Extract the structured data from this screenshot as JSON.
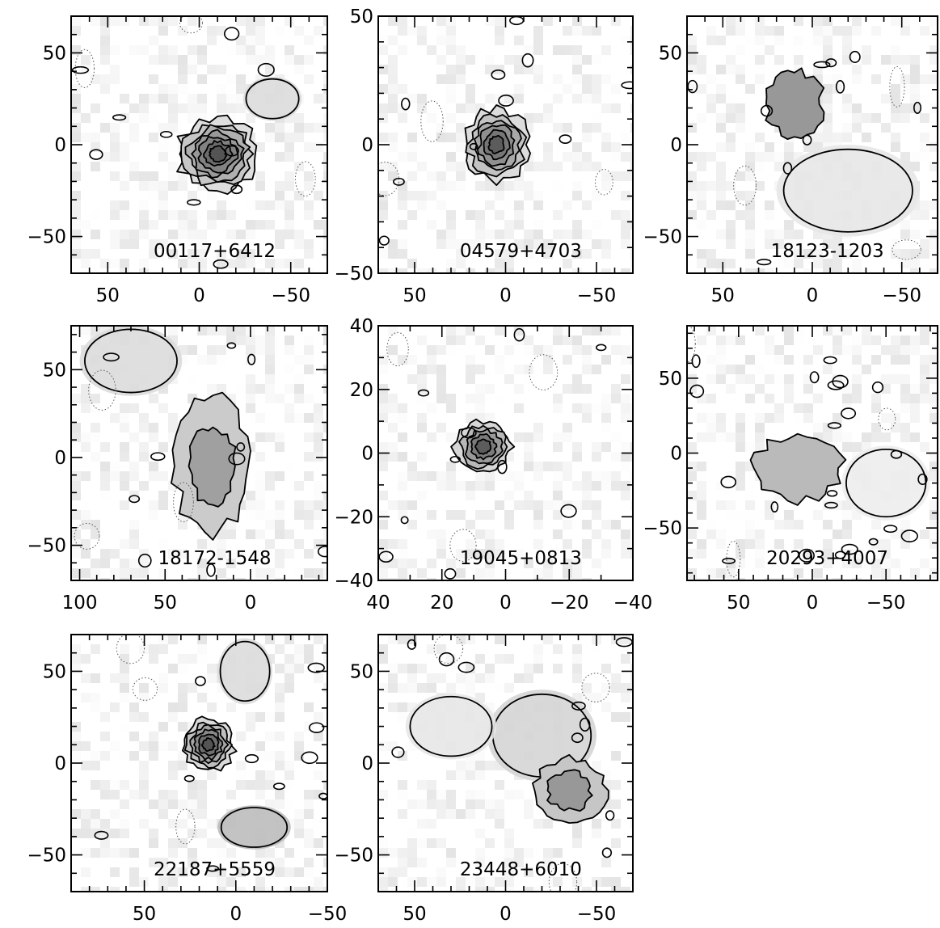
{
  "figure": {
    "title": "",
    "panel_count": 8,
    "colors": {
      "frame": "#000000",
      "background": "#ffffff",
      "contour_solid": "#000000",
      "contour_dotted": "#555555",
      "map_dark": "#404040",
      "map_light": "#f2f2f2"
    }
  },
  "chart_data": [
    {
      "type": "heatmap",
      "source": "00117+6412",
      "xticks": [
        50,
        0,
        -50
      ],
      "yticks": [
        50,
        0,
        -50
      ],
      "xlim": [
        70,
        -70
      ],
      "ylim": [
        -70,
        70
      ],
      "xlabel": "",
      "ylabel": "",
      "peak": {
        "x": -10,
        "y": -5
      },
      "spread": [
        22,
        20
      ],
      "peak_intensity": 0.95,
      "contour_levels": 7,
      "secondary_emission": [
        {
          "x": -40,
          "y": 25,
          "rx": 16,
          "ry": 12,
          "intensity": 0.3
        }
      ]
    },
    {
      "type": "heatmap",
      "source": "04579+4703",
      "xticks": [
        50,
        0,
        -50
      ],
      "yticks": [
        50,
        0,
        -50
      ],
      "xlim": [
        70,
        -70
      ],
      "ylim": [
        -50,
        50
      ],
      "xlabel": "",
      "ylabel": "",
      "peak": {
        "x": 5,
        "y": 0
      },
      "spread": [
        18,
        14
      ],
      "peak_intensity": 0.9,
      "contour_levels": 6,
      "secondary_emission": []
    },
    {
      "type": "heatmap",
      "source": "18123-1203",
      "xticks": [
        50,
        0,
        -50
      ],
      "yticks": [
        50,
        0,
        -50
      ],
      "xlim": [
        70,
        -70
      ],
      "ylim": [
        -70,
        70
      ],
      "xlabel": "",
      "ylabel": "",
      "peak": {
        "x": 10,
        "y": 22
      },
      "spread": [
        16,
        18
      ],
      "peak_intensity": 0.55,
      "contour_levels": 1,
      "secondary_emission": [
        {
          "x": -20,
          "y": -25,
          "rx": 40,
          "ry": 25,
          "intensity": 0.2
        }
      ]
    },
    {
      "type": "heatmap",
      "source": "18172-1548",
      "xticks": [
        100,
        50,
        0
      ],
      "yticks": [
        50,
        0,
        -50
      ],
      "xlim": [
        105,
        -45
      ],
      "ylim": [
        -70,
        75
      ],
      "xlabel": "",
      "ylabel": "",
      "peak": {
        "x": 22,
        "y": -5
      },
      "spread": [
        22,
        38
      ],
      "peak_intensity": 0.5,
      "contour_levels": 2,
      "secondary_emission": [
        {
          "x": 70,
          "y": 55,
          "rx": 30,
          "ry": 20,
          "intensity": 0.3
        }
      ]
    },
    {
      "type": "heatmap",
      "source": "19045+0813",
      "xticks": [
        40,
        20,
        0,
        -20,
        -40
      ],
      "yticks": [
        40,
        20,
        0,
        -20,
        -40
      ],
      "xlim": [
        40,
        -40
      ],
      "ylim": [
        -40,
        40
      ],
      "xlabel": "",
      "ylabel": "",
      "peak": {
        "x": 7,
        "y": 2
      },
      "spread": [
        9,
        8
      ],
      "peak_intensity": 0.9,
      "contour_levels": 5,
      "secondary_emission": []
    },
    {
      "type": "heatmap",
      "source": "20293+4007",
      "xticks": [
        50,
        0,
        -50
      ],
      "yticks": [
        50,
        0,
        -50
      ],
      "xlim": [
        85,
        -85
      ],
      "ylim": [
        -85,
        85
      ],
      "xlabel": "",
      "ylabel": "",
      "peak": {
        "x": 10,
        "y": -10
      },
      "spread": [
        30,
        22
      ],
      "peak_intensity": 0.35,
      "contour_levels": 1,
      "secondary_emission": [
        {
          "x": -50,
          "y": -20,
          "rx": 30,
          "ry": 25,
          "intensity": 0.15
        }
      ]
    },
    {
      "type": "heatmap",
      "source": "22187+5559",
      "xticks": [
        50,
        0,
        -50
      ],
      "yticks": [
        50,
        0,
        -50
      ],
      "xlim": [
        90,
        -50
      ],
      "ylim": [
        -70,
        70
      ],
      "xlabel": "",
      "ylabel": "",
      "peak": {
        "x": 15,
        "y": 10
      },
      "spread": [
        14,
        14
      ],
      "peak_intensity": 0.95,
      "contour_levels": 6,
      "secondary_emission": [
        {
          "x": -10,
          "y": -35,
          "rx": 20,
          "ry": 12,
          "intensity": 0.55
        },
        {
          "x": -5,
          "y": 50,
          "rx": 15,
          "ry": 18,
          "intensity": 0.3
        }
      ]
    },
    {
      "type": "heatmap",
      "source": "23448+6010",
      "xticks": [
        50,
        0,
        -50
      ],
      "yticks": [
        50,
        0,
        -50
      ],
      "xlim": [
        70,
        -70
      ],
      "ylim": [
        -70,
        70
      ],
      "xlabel": "",
      "ylabel": "",
      "peak": {
        "x": -35,
        "y": -15
      },
      "spread": [
        20,
        18
      ],
      "peak_intensity": 0.55,
      "contour_levels": 2,
      "secondary_emission": [
        {
          "x": -20,
          "y": 15,
          "rx": 30,
          "ry": 25,
          "intensity": 0.35
        },
        {
          "x": 30,
          "y": 20,
          "rx": 25,
          "ry": 18,
          "intensity": 0.2
        }
      ]
    }
  ]
}
